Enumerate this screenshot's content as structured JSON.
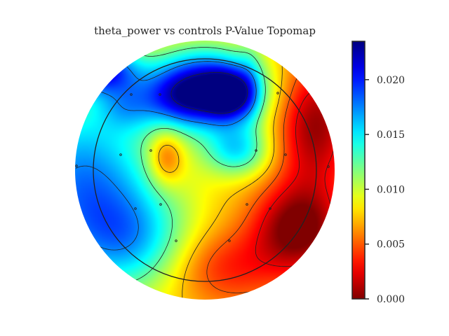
{
  "chart_data": {
    "type": "heatmap",
    "title": "theta_power vs controls P-Value Topomap",
    "colormap": "jet_reversed",
    "colorbar": {
      "vmin": 0.0,
      "vmax": 0.0235,
      "ticks": [
        0.0,
        0.005,
        0.01,
        0.015,
        0.02
      ],
      "tick_labels": [
        "0.000",
        "0.005",
        "0.010",
        "0.015",
        "0.020"
      ],
      "placement": "right"
    },
    "blobs": [
      {
        "x": 0.0,
        "y": 0.62,
        "sx": 0.42,
        "sy": 0.3,
        "amp": 0.016
      },
      {
        "x": 0.2,
        "y": 0.58,
        "sx": 0.18,
        "sy": 0.18,
        "amp": 0.008
      },
      {
        "x": -0.83,
        "y": 0.78,
        "sx": 0.3,
        "sy": 0.18,
        "amp": 0.012
      },
      {
        "x": -0.62,
        "y": 0.5,
        "sx": 0.22,
        "sy": 0.2,
        "amp": 0.004
      },
      {
        "x": -0.25,
        "y": 0.55,
        "sx": 0.28,
        "sy": 0.2,
        "amp": 0.003
      },
      {
        "x": -0.95,
        "y": -0.1,
        "sx": 0.6,
        "sy": 0.7,
        "amp": 0.01
      },
      {
        "x": -0.55,
        "y": -0.55,
        "sx": 0.45,
        "sy": 0.4,
        "amp": 0.006
      },
      {
        "x": 0.25,
        "y": 0.15,
        "sx": 0.25,
        "sy": 0.2,
        "amp": 0.007
      },
      {
        "x": -0.3,
        "y": 0.1,
        "sx": 0.14,
        "sy": 0.22,
        "amp": -0.005
      },
      {
        "x": 0.85,
        "y": 0.35,
        "sx": 0.3,
        "sy": 0.5,
        "amp": -0.007
      },
      {
        "x": 0.72,
        "y": -0.45,
        "sx": 0.35,
        "sy": 0.35,
        "amp": -0.008
      },
      {
        "x": 0.15,
        "y": -0.75,
        "sx": 0.45,
        "sy": 0.3,
        "amp": -0.004
      },
      {
        "x": 0.35,
        "y": 0.7,
        "sx": 0.1,
        "sy": 0.35,
        "amp": 0.002
      }
    ],
    "base_value": 0.0075,
    "contour_levels": [
      0.0025,
      0.005,
      0.0075,
      0.0125,
      0.0175,
      0.0225
    ]
  }
}
